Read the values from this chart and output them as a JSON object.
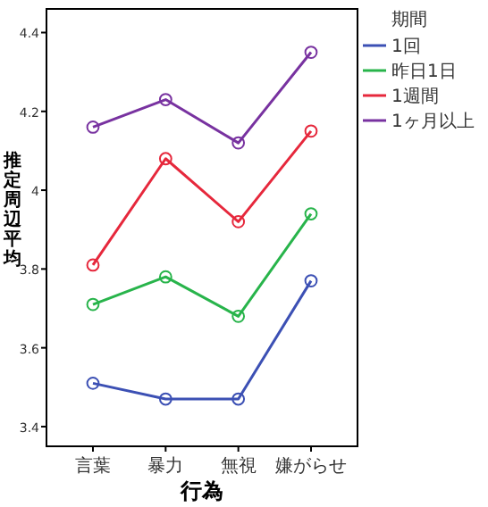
{
  "chart_data": {
    "type": "line",
    "xlabel": "行為",
    "ylabel": "推定周辺平均",
    "legend_title": "期間",
    "legend": "right",
    "marker": "circle",
    "grid": false,
    "categories": [
      "言葉",
      "暴力",
      "無視",
      "嫌がらせ"
    ],
    "ylim": [
      3.35,
      4.46
    ],
    "yticks": [
      3.4,
      3.6,
      3.8,
      4,
      4.2,
      4.4
    ],
    "series": [
      {
        "name": "1回",
        "color": "#3c50b4",
        "values": [
          3.51,
          3.47,
          3.47,
          3.77
        ]
      },
      {
        "name": "昨日1日",
        "color": "#28b44b",
        "values": [
          3.71,
          3.78,
          3.68,
          3.94
        ]
      },
      {
        "name": "1週間",
        "color": "#e6283c",
        "values": [
          3.81,
          4.08,
          3.92,
          4.15
        ]
      },
      {
        "name": "1ヶ月以上",
        "color": "#7832a0",
        "values": [
          4.16,
          4.23,
          4.12,
          4.35
        ]
      }
    ]
  }
}
